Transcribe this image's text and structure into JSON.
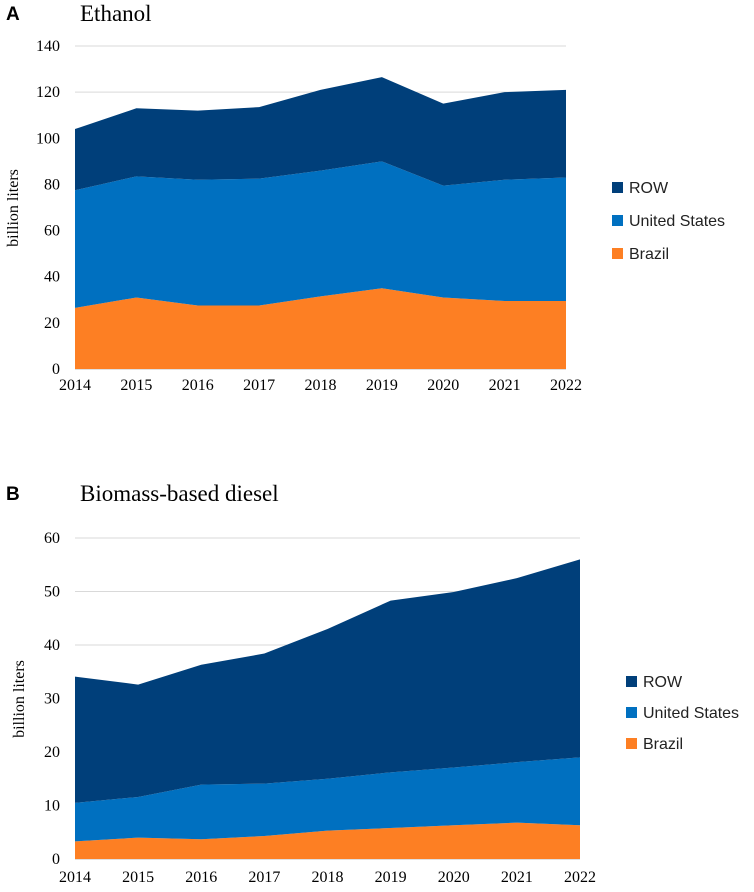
{
  "chart_data": [
    {
      "type": "area",
      "stacked": true,
      "panel_letter": "A",
      "title": "Ethanol",
      "xlabel": "",
      "ylabel": "billion liters",
      "x": [
        "2014",
        "2015",
        "2016",
        "2017",
        "2018",
        "2019",
        "2020",
        "2021",
        "2022"
      ],
      "ylim": [
        0,
        140
      ],
      "yticks": [
        "0",
        "20",
        "40",
        "60",
        "80",
        "100",
        "120",
        "140"
      ],
      "grid": true,
      "legend_position": "right",
      "series": [
        {
          "name": "Brazil",
          "color": "#fd7f23",
          "values": [
            26.5,
            31,
            27.5,
            27.5,
            31.5,
            35,
            31,
            29.5,
            29.5
          ]
        },
        {
          "name": "United States",
          "color": "#0070c0",
          "values": [
            51,
            52.5,
            54.5,
            55,
            54.5,
            55,
            48.5,
            52.5,
            53.5
          ]
        },
        {
          "name": "ROW",
          "color": "#003f7a",
          "values": [
            26.5,
            29.5,
            30,
            31,
            35,
            36.5,
            35.5,
            38,
            38
          ]
        }
      ],
      "legend_order": [
        "ROW",
        "United States",
        "Brazil"
      ]
    },
    {
      "type": "area",
      "stacked": true,
      "panel_letter": "B",
      "title": "Biomass-based diesel",
      "xlabel": "",
      "ylabel": "billion liters",
      "x": [
        "2014",
        "2015",
        "2016",
        "2017",
        "2018",
        "2019",
        "2020",
        "2021",
        "2022"
      ],
      "ylim": [
        0,
        60
      ],
      "yticks": [
        "0",
        "10",
        "20",
        "30",
        "40",
        "50",
        "60"
      ],
      "grid": true,
      "legend_position": "right",
      "series": [
        {
          "name": "Brazil",
          "color": "#fd7f23",
          "values": [
            3.3,
            4,
            3.7,
            4.3,
            5.3,
            5.8,
            6.3,
            6.8,
            6.3
          ]
        },
        {
          "name": "United States",
          "color": "#0070c0",
          "values": [
            7.2,
            7.6,
            10.2,
            9.8,
            9.7,
            10.4,
            10.8,
            11.3,
            12.7
          ]
        },
        {
          "name": "ROW",
          "color": "#003f7a",
          "values": [
            23.6,
            21,
            22.4,
            24.3,
            28,
            32.1,
            32.8,
            34.4,
            37
          ]
        }
      ],
      "legend_order": [
        "ROW",
        "United States",
        "Brazil"
      ]
    }
  ]
}
